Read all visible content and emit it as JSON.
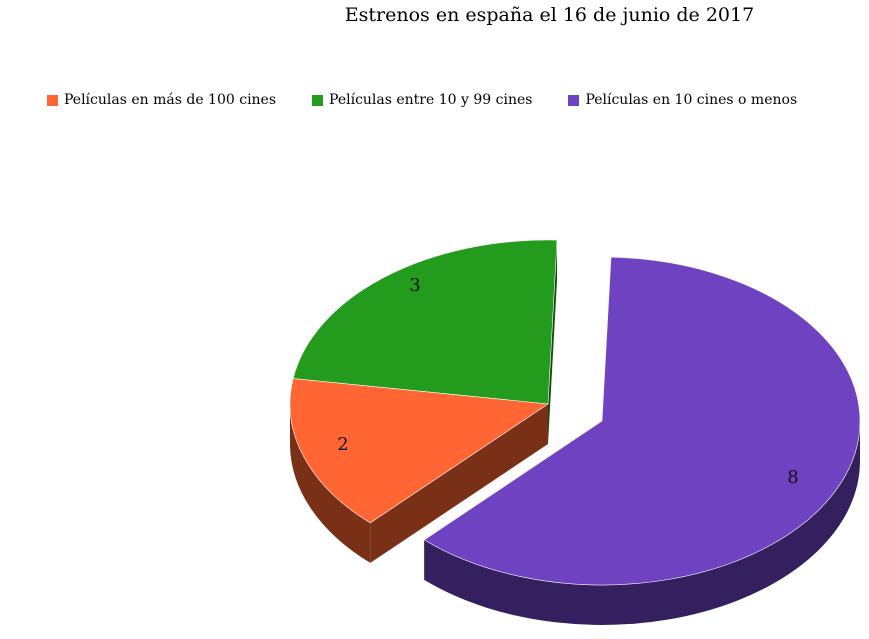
{
  "chart_data": {
    "type": "pie",
    "title": "Estrenos en españa el 16 de junio de 2017",
    "legend_position": "top",
    "three_d": true,
    "exploded": true,
    "categories": [
      "Películas en más de 100 cines",
      "Películas entre 10 y 99 cines",
      "Películas en 10 cines o menos"
    ],
    "values": [
      2,
      3,
      8
    ],
    "data_labels": [
      "2",
      "3",
      "8"
    ],
    "colors": [
      "#ff6633",
      "#239b1d",
      "#6f42c1"
    ],
    "side_colors": [
      "#7a2f17",
      "#124d0e",
      "#34205e"
    ]
  }
}
